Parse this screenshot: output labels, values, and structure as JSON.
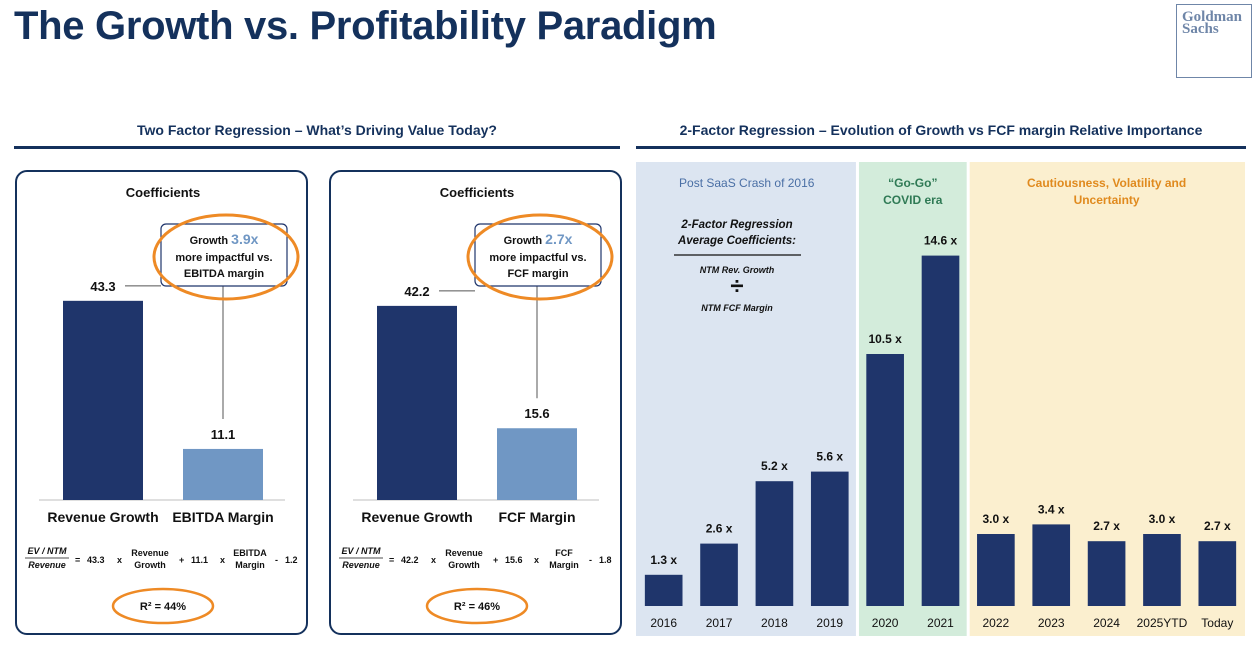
{
  "header": {
    "title": "The Growth vs. Profitability Paradigm",
    "logo_line1": "Goldman",
    "logo_line2": "Sachs"
  },
  "left_section": {
    "title": "Two Factor Regression – What’s Driving Value Today?"
  },
  "right_section": {
    "title": "2-Factor Regression – Evolution of Growth vs FCF margin Relative Importance"
  },
  "colors": {
    "navy": "#1f356b",
    "light_blue": "#7097c4",
    "orange": "#ee8a25",
    "band_blue": "#dce5f1",
    "band_green": "#d3ecdb",
    "band_yellow": "#fbefcf"
  },
  "chart_data": [
    {
      "type": "bar",
      "title": "Coefficients",
      "categories": [
        "Revenue Growth",
        "EBITDA Margin"
      ],
      "values": [
        43.3,
        11.1
      ],
      "value_labels": [
        "43.3",
        "11.1"
      ],
      "callout": {
        "prefix": "Growth ",
        "multiple": "3.9x",
        "line2": "more impactful vs.",
        "line3": "EBITDA margin"
      },
      "formula": {
        "lhs1": "EV / NTM",
        "lhs2": "Revenue",
        "c1": "43.3",
        "v1a": "Revenue",
        "v1b": "Growth",
        "c2": "11.1",
        "v2a": "EBITDA",
        "v2b": "Margin",
        "intercept": "1.2"
      },
      "r2": "R² = 44%"
    },
    {
      "type": "bar",
      "title": "Coefficients",
      "categories": [
        "Revenue Growth",
        "FCF Margin"
      ],
      "values": [
        42.2,
        15.6
      ],
      "value_labels": [
        "42.2",
        "15.6"
      ],
      "callout": {
        "prefix": "Growth ",
        "multiple": "2.7x",
        "line2": "more impactful vs.",
        "line3": "FCF margin"
      },
      "formula": {
        "lhs1": "EV / NTM",
        "lhs2": "Revenue",
        "c1": "42.2",
        "v1a": "Revenue",
        "v1b": "Growth",
        "c2": "15.6",
        "v2a": "FCF",
        "v2b": "Margin",
        "intercept": "1.8"
      },
      "r2": "R² = 46%"
    },
    {
      "type": "bar",
      "categories": [
        "2016",
        "2017",
        "2018",
        "2019",
        "2020",
        "2021",
        "2022",
        "2023",
        "2024",
        "2025YTD",
        "Today"
      ],
      "values": [
        1.3,
        2.6,
        5.2,
        5.6,
        10.5,
        14.6,
        3.0,
        3.4,
        2.7,
        3.0,
        2.7
      ],
      "value_labels": [
        "1.3 x",
        "2.6 x",
        "5.2 x",
        "5.6 x",
        "10.5 x",
        "14.6 x",
        "3.0 x",
        "3.4 x",
        "2.7 x",
        "3.0 x",
        "2.7 x"
      ],
      "ylim": [
        0,
        16
      ],
      "eras": [
        {
          "label_lines": [
            "Post SaaS Crash of 2016"
          ],
          "start": 0,
          "end": 3,
          "band": "band_blue",
          "text_color": "#4a6fa5"
        },
        {
          "label_lines": [
            "“Go-Go”",
            "COVID era"
          ],
          "start": 4,
          "end": 5,
          "band": "band_green",
          "text_color": "#2f7a55"
        },
        {
          "label_lines": [
            "Cautiousness, Volatility and",
            "Uncertainty"
          ],
          "start": 6,
          "end": 10,
          "band": "band_yellow",
          "text_color": "#e08a1e"
        }
      ],
      "legend_box": {
        "title1": "2-Factor Regression",
        "title2": "Average Coefficients:",
        "numerator": "NTM Rev. Growth",
        "divide_symbol": "÷",
        "denominator": "NTM FCF Margin"
      }
    }
  ]
}
